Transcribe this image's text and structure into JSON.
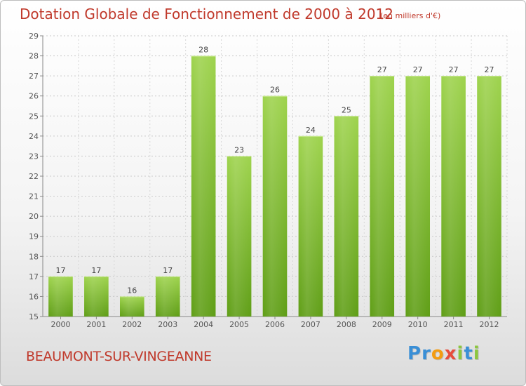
{
  "chart_data": {
    "type": "bar",
    "title": "Dotation Globale de Fonctionnement de 2000 à 2012",
    "unit_note": "(en milliers d'€)",
    "categories": [
      "2000",
      "2001",
      "2002",
      "2003",
      "2004",
      "2005",
      "2006",
      "2007",
      "2008",
      "2009",
      "2010",
      "2011",
      "2012"
    ],
    "values": [
      17,
      17,
      16,
      17,
      28,
      23,
      26,
      24,
      25,
      27,
      27,
      27,
      27
    ],
    "ylim": [
      15,
      29
    ],
    "yticks": [
      15,
      16,
      17,
      18,
      19,
      20,
      21,
      22,
      23,
      24,
      25,
      26,
      27,
      28,
      29
    ],
    "grid": true,
    "bar_color": "#7cc130"
  },
  "commune": "BEAUMONT-SUR-VINGEANNE",
  "logo": {
    "text": "Proxiti",
    "letters": [
      {
        "ch": "P",
        "color": "#3a8fd6"
      },
      {
        "ch": "r",
        "color": "#3a8fd6"
      },
      {
        "ch": "o",
        "color": "#f39c12"
      },
      {
        "ch": "x",
        "color": "#e74c3c"
      },
      {
        "ch": "i",
        "color": "#8cc63f"
      },
      {
        "ch": "t",
        "color": "#3a8fd6"
      },
      {
        "ch": "i",
        "color": "#8cc63f"
      }
    ]
  }
}
